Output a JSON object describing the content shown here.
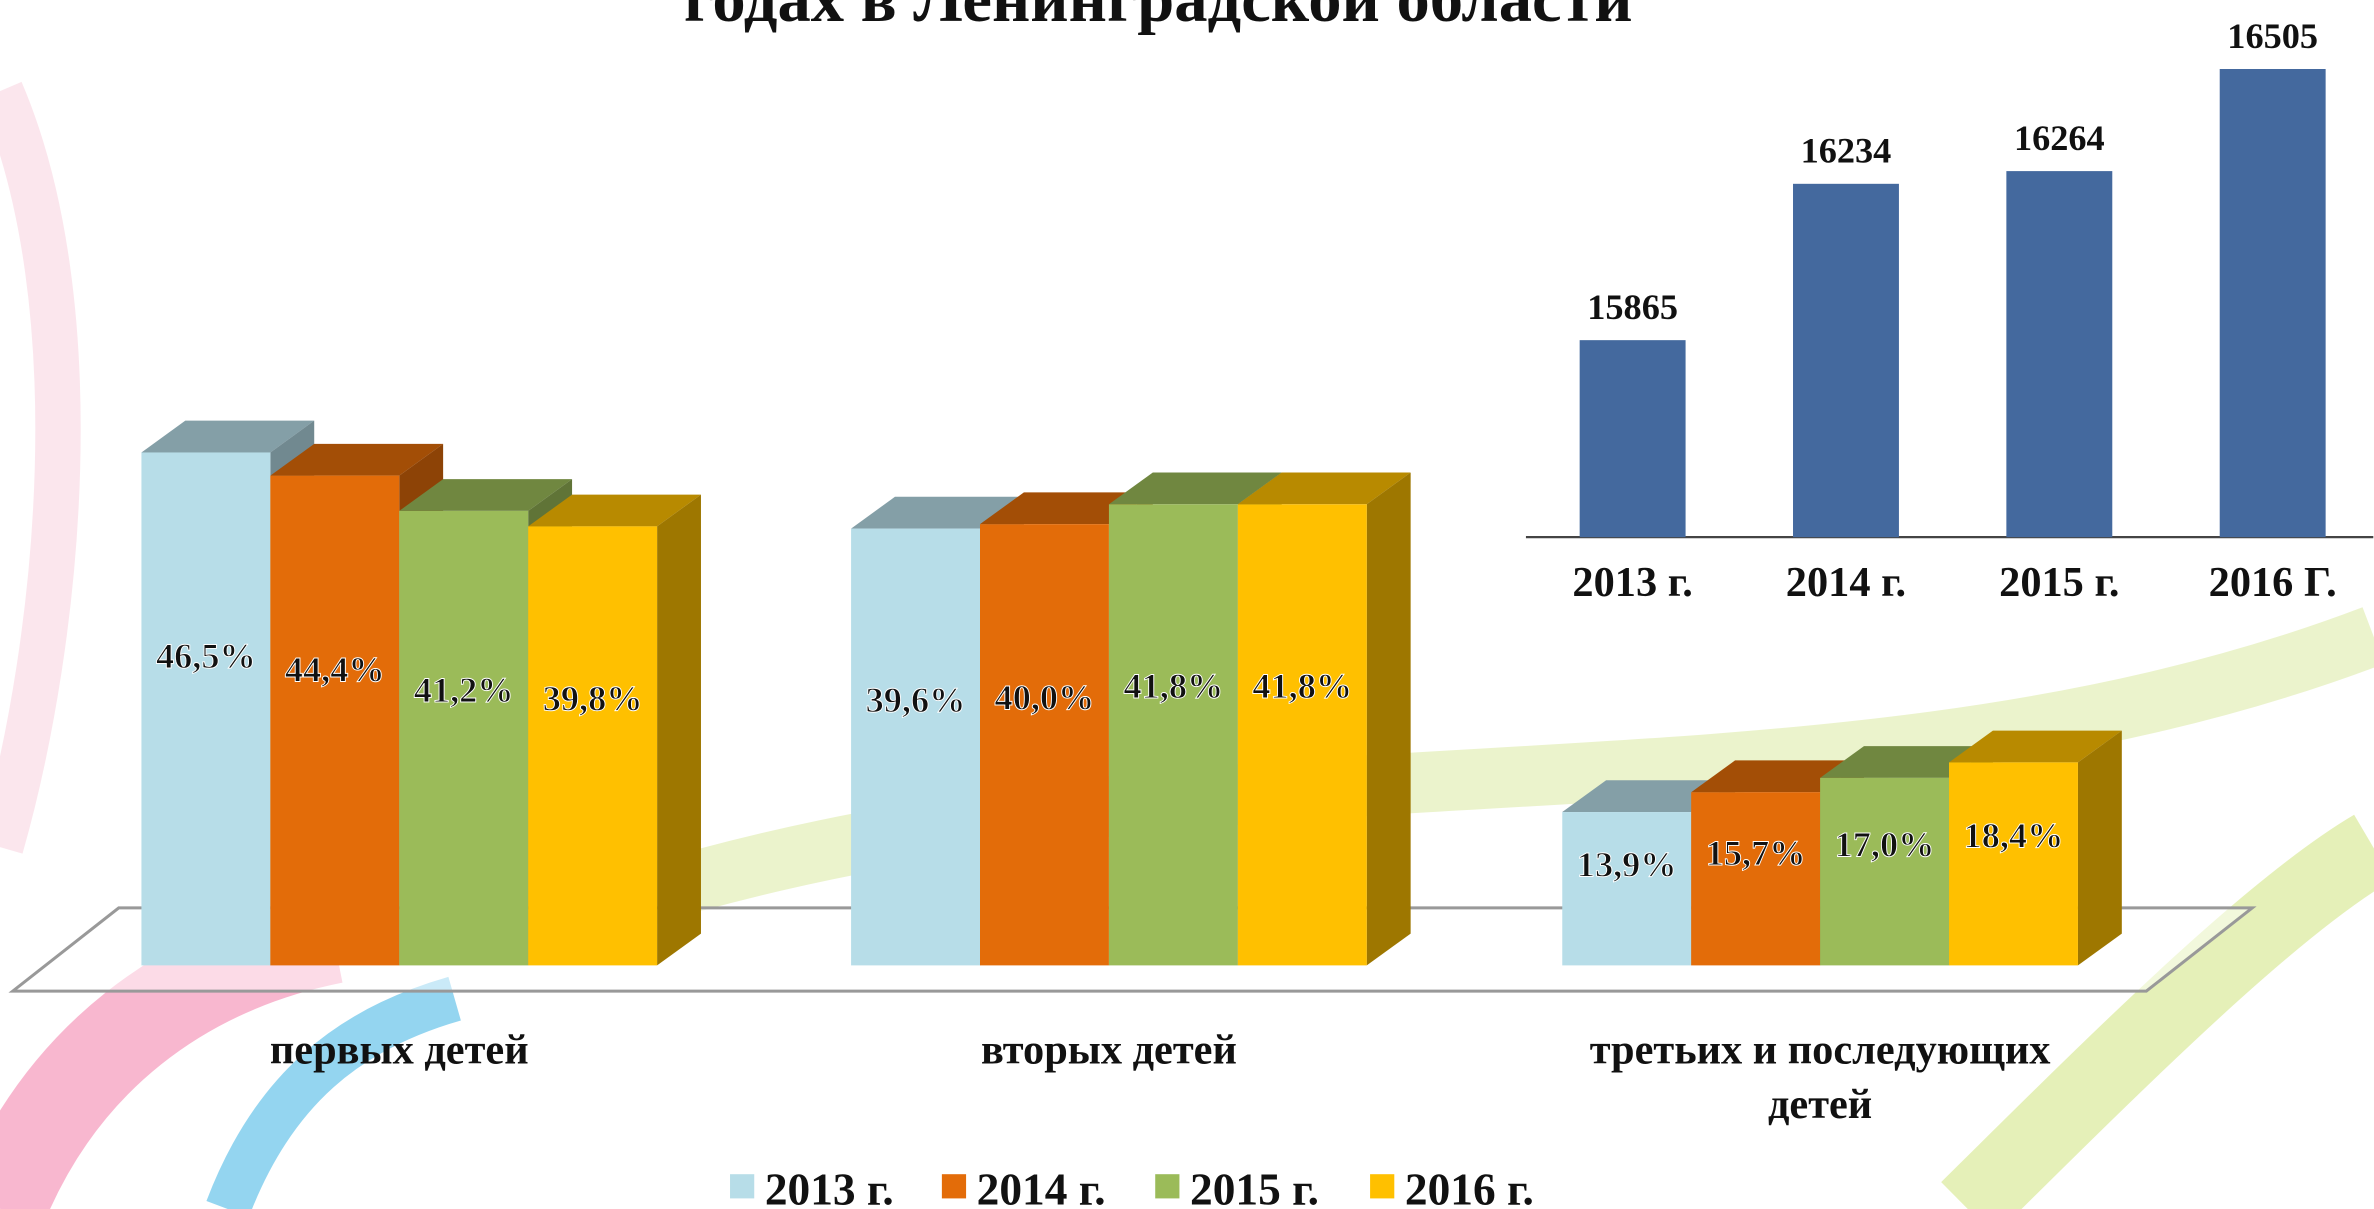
{
  "chart_data": [
    {
      "type": "bar3d",
      "title": "годах в Ленинградской области",
      "categories": [
        "первых детей",
        "вторых детей",
        "третьих и последующих детей"
      ],
      "series": [
        {
          "name": "2013 г.",
          "color": "#b7dde8",
          "values": [
            46.5,
            39.6,
            13.9
          ],
          "value_labels": [
            "46,5%",
            "39,6%",
            "13,9%"
          ]
        },
        {
          "name": "2014 г.",
          "color": "#e36c09",
          "values": [
            44.4,
            40.0,
            15.7
          ],
          "value_labels": [
            "44,4%",
            "40,0%",
            "15,7%"
          ]
        },
        {
          "name": "2015 г.",
          "color": "#9bbb59",
          "values": [
            41.2,
            41.8,
            17.0
          ],
          "value_labels": [
            "41,2%",
            "41,8%",
            "17,0%"
          ]
        },
        {
          "name": "2016 г.",
          "color": "#ffc000",
          "values": [
            39.8,
            41.8,
            18.4
          ],
          "value_labels": [
            "39,8%",
            "41,8%",
            "18,4%"
          ]
        }
      ],
      "ylim": [
        0,
        50
      ]
    },
    {
      "type": "bar",
      "categories": [
        "2013 г.",
        "2014 г.",
        "2015 г.",
        "2016 Г."
      ],
      "values": [
        15865,
        16234,
        16264,
        16505
      ],
      "color": "#44699e",
      "ylim": [
        15400,
        16600
      ]
    }
  ]
}
